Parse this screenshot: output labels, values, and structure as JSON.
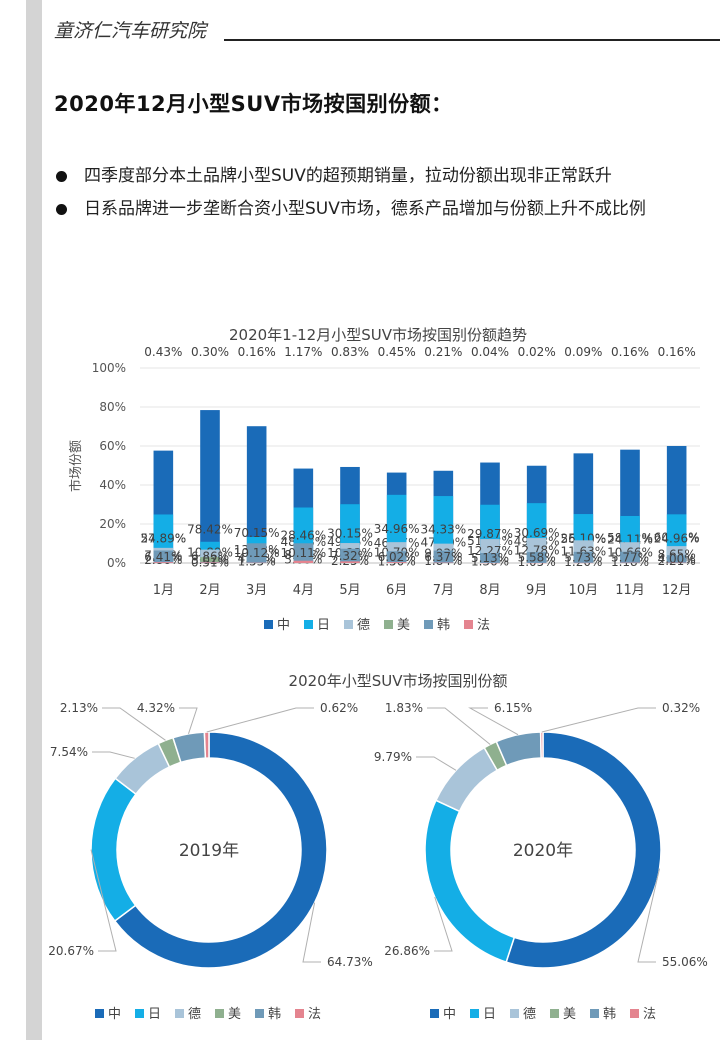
{
  "header": {
    "org": "童济仁汽车研究院"
  },
  "page": {
    "title": "2020年12月小型SUV市场按国别份额：",
    "bullets": [
      "四季度部分本土品牌小型SUV的超预期销量，拉动份额出现非正常跃升",
      "日系品牌进一步垄断合资小型SUV市场，德系产品增加与份额上升不成比例"
    ]
  },
  "colors": {
    "中": "#1a6bb8",
    "日": "#14aee6",
    "德": "#a9c4d9",
    "美": "#8fb08f",
    "韩": "#6f9ab8",
    "法": "#e4848f"
  },
  "chart_data": [
    {
      "type": "bar",
      "stacked": true,
      "title": "2020年1-12月小型SUV市场按国别份额趋势",
      "ylabel": "市场份额",
      "ylim": [
        0,
        100
      ],
      "yticks": [
        "0%",
        "20%",
        "40%",
        "60%",
        "80%",
        "100%"
      ],
      "categories": [
        "1月",
        "2月",
        "3月",
        "4月",
        "5月",
        "6月",
        "7月",
        "8月",
        "9月",
        "10月",
        "11月",
        "12月"
      ],
      "series": [
        {
          "name": "中",
          "values": [
            57.63,
            78.42,
            70.15,
            48.43,
            49.25,
            46.37,
            47.3,
            51.52,
            49.88,
            56.23,
            58.12,
            60.01
          ],
          "labels": [
            "57.63%",
            "78.42%",
            "70.15%",
            "48.43%",
            "49.25%",
            "46.37%",
            "47.30%",
            "51.52%",
            "49.88%",
            "56.23%",
            "58.12%",
            "60.01%"
          ]
        },
        {
          "name": "日",
          "values": [
            24.89,
            10.89,
            13.33,
            28.46,
            30.15,
            34.96,
            34.33,
            29.87,
            30.69,
            25.1,
            24.11,
            24.96
          ],
          "labels": [
            "24.89%",
            "10.89%",
            "13.33%",
            "28.46%",
            "30.15%",
            "34.96%",
            "34.33%",
            "29.87%",
            "30.69%",
            "25.10%",
            "24.11%",
            "24.96%"
          ]
        },
        {
          "name": "德",
          "values": [
            7.77,
            6.86,
            4.87,
            8.23,
            10.23,
            10.7,
            9.93,
            12.27,
            12.78,
            11.63,
            10.66,
            8.65
          ],
          "labels": [
            "7.77%",
            "6.86%",
            "4.87%",
            "8.23%",
            "10.23%",
            "10.70%",
            "9.93%",
            "12.27%",
            "12.78%",
            "11.63%",
            "10.66%",
            "8.65%"
          ]
        },
        {
          "name": "美",
          "values": [
            2.86,
            3.02,
            1.55,
            3.6,
            2.25,
            1.5,
            1.84,
            1.36,
            1.05,
            1.2,
            1.18,
            2.21
          ],
          "labels": [
            "2.86%",
            "3.02%",
            "1.55%",
            "3.60%",
            "2.25%",
            "1.50%",
            "1.84%",
            "1.36%",
            "1.05%",
            "1.20%",
            "1.18%",
            "2.21%"
          ]
        },
        {
          "name": "韩",
          "values": [
            6.41,
            0.51,
            10.12,
            10.11,
            7.32,
            6.02,
            6.37,
            5.13,
            5.58,
            5.73,
            5.77,
            4.0
          ],
          "labels": [
            "6.41%",
            "0.51%",
            "10.12%",
            "10.11%",
            "7.32%",
            "6.02%",
            "6.37%",
            "5.13%",
            "5.58%",
            "5.73%",
            "5.77%",
            "4.00%"
          ]
        },
        {
          "name": "法",
          "values": [
            0.43,
            0.3,
            0.16,
            1.17,
            0.83,
            0.45,
            0.21,
            0.04,
            0.02,
            0.09,
            0.16,
            0.16
          ],
          "labels": [
            "0.43%",
            "0.30%",
            "0.16%",
            "1.17%",
            "0.83%",
            "0.45%",
            "0.21%",
            "0.04%",
            "0.02%",
            "0.09%",
            "0.16%",
            "0.16%"
          ]
        }
      ],
      "legend": [
        "中",
        "日",
        "德",
        "美",
        "韩",
        "法"
      ],
      "grid": true
    },
    {
      "type": "pie",
      "donut": true,
      "title": "2020年小型SUV市场按国别份额",
      "charts": [
        {
          "center_label": "2019年",
          "slices": [
            {
              "name": "中",
              "value": 64.73,
              "label": "64.73%"
            },
            {
              "name": "日",
              "value": 20.67,
              "label": "20.67%"
            },
            {
              "name": "德",
              "value": 7.54,
              "label": "7.54%"
            },
            {
              "name": "美",
              "value": 2.13,
              "label": "2.13%"
            },
            {
              "name": "韩",
              "value": 4.32,
              "label": "4.32%"
            },
            {
              "name": "法",
              "value": 0.62,
              "label": "0.62%"
            }
          ]
        },
        {
          "center_label": "2020年",
          "slices": [
            {
              "name": "中",
              "value": 55.06,
              "label": "55.06%"
            },
            {
              "name": "日",
              "value": 26.86,
              "label": "26.86%"
            },
            {
              "name": "德",
              "value": 9.79,
              "label": "9.79%"
            },
            {
              "name": "美",
              "value": 1.83,
              "label": "1.83%"
            },
            {
              "name": "韩",
              "value": 6.15,
              "label": "6.15%"
            },
            {
              "name": "法",
              "value": 0.32,
              "label": "0.32%"
            }
          ]
        }
      ],
      "legend": [
        "中",
        "日",
        "德",
        "美",
        "韩",
        "法"
      ]
    }
  ]
}
